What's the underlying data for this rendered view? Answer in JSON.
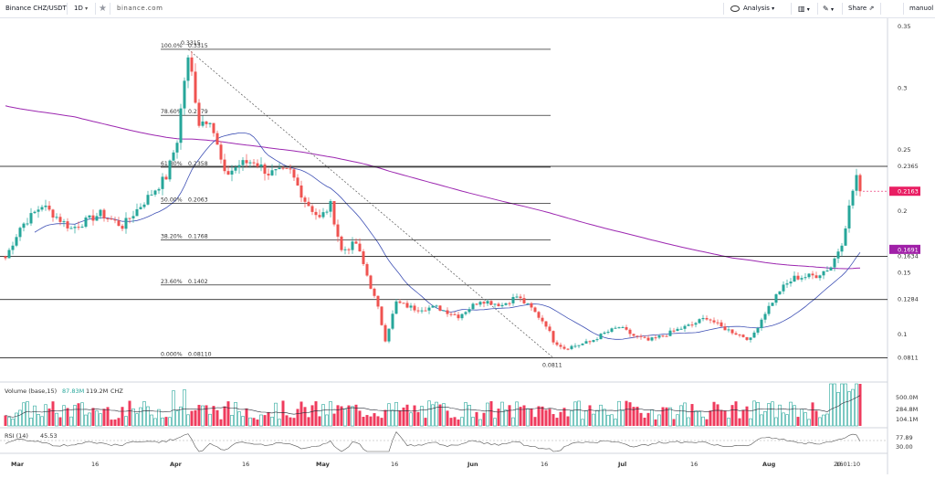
{
  "toolbar": {
    "symbol": "Binance CHZ/USDT",
    "interval": "1D",
    "watermark": "binance.com",
    "analysis": "Analysis",
    "share": "Share",
    "user": "manuol"
  },
  "colors": {
    "up": "#26a69a",
    "down": "#ef5350",
    "ma_long": "#9c27b0",
    "ma_short": "#3f51b5",
    "fib_line": "#000000",
    "price_tag": "#e91e63"
  },
  "icons": [
    "chevron-down-icon",
    "star-icon",
    "eye-icon",
    "bars-icon",
    "pencil-icon",
    "share-icon"
  ],
  "chart_data": {
    "type": "candlestick",
    "symbol": "Binance CHZ/USDT",
    "interval": "1D",
    "x_labels": [
      "Mar",
      "16",
      "Apr",
      "16",
      "May",
      "16",
      "Jun",
      "16",
      "Jul",
      "16",
      "Aug",
      "16"
    ],
    "y_ticks": [
      "0.35",
      "0.3",
      "0.25",
      "0.2",
      "0.15",
      "0.1"
    ],
    "ylim": [
      0.074,
      0.36
    ],
    "price_labels": [
      {
        "text": "0.2365",
        "value": 0.2365
      },
      {
        "text": "0.1634",
        "value": 0.1634
      },
      {
        "text": "0.1284",
        "value": 0.1284
      },
      {
        "text": "0.0811",
        "value": 0.0811
      }
    ],
    "last_price": {
      "text": "0.2163",
      "value": 0.2163
    },
    "ma_price": {
      "text": "0.1691",
      "value": 0.1691
    },
    "horizontal_levels": [
      0.2365,
      0.1634,
      0.1284,
      0.0811
    ],
    "fibonacci": {
      "high": 0.3315,
      "low": 0.0811,
      "levels": [
        {
          "label": "100.0%",
          "value_text": "0.3315",
          "value": 0.3315
        },
        {
          "label": "78.60%",
          "value_text": "0.2779",
          "value": 0.2779
        },
        {
          "label": "61.80%",
          "value_text": "0.2358",
          "value": 0.2358
        },
        {
          "label": "50.00%",
          "value_text": "0.2063",
          "value": 0.2063
        },
        {
          "label": "38.20%",
          "value_text": "0.1768",
          "value": 0.1768
        },
        {
          "label": "23.60%",
          "value_text": "0.1402",
          "value": 0.1402
        },
        {
          "label": "0.000%",
          "value_text": "0.08110",
          "value": 0.0811
        }
      ]
    },
    "annotations": [
      {
        "text": "0.3315",
        "value": 0.3315
      },
      {
        "text": "0.0811",
        "value": 0.0811
      }
    ],
    "series": [
      {
        "name": "price",
        "anchors": [
          [
            0,
            0.162
          ],
          [
            4,
            0.187
          ],
          [
            10,
            0.205
          ],
          [
            18,
            0.186
          ],
          [
            26,
            0.198
          ],
          [
            32,
            0.188
          ],
          [
            38,
            0.208
          ],
          [
            44,
            0.228
          ],
          [
            47,
            0.258
          ],
          [
            50,
            0.3315
          ],
          [
            53,
            0.272
          ],
          [
            56,
            0.276
          ],
          [
            60,
            0.229
          ],
          [
            64,
            0.238
          ],
          [
            68,
            0.241
          ],
          [
            72,
            0.231
          ],
          [
            78,
            0.232
          ],
          [
            82,
            0.209
          ],
          [
            86,
            0.194
          ],
          [
            89,
            0.205
          ],
          [
            92,
            0.168
          ],
          [
            96,
            0.174
          ],
          [
            99,
            0.148
          ],
          [
            102,
            0.121
          ],
          [
            104,
            0.096
          ],
          [
            107,
            0.126
          ],
          [
            112,
            0.121
          ],
          [
            118,
            0.122
          ],
          [
            124,
            0.115
          ],
          [
            130,
            0.128
          ],
          [
            136,
            0.124
          ],
          [
            140,
            0.131
          ],
          [
            144,
            0.121
          ],
          [
            148,
            0.108
          ],
          [
            150,
            0.095
          ],
          [
            153,
            0.089
          ],
          [
            156,
            0.091
          ],
          [
            160,
            0.094
          ],
          [
            164,
            0.101
          ],
          [
            168,
            0.106
          ],
          [
            172,
            0.099
          ],
          [
            176,
            0.095
          ],
          [
            180,
            0.099
          ],
          [
            184,
            0.104
          ],
          [
            188,
            0.108
          ],
          [
            192,
            0.114
          ],
          [
            196,
            0.106
          ],
          [
            200,
            0.101
          ],
          [
            204,
            0.096
          ],
          [
            208,
            0.118
          ],
          [
            212,
            0.136
          ],
          [
            216,
            0.146
          ],
          [
            222,
            0.148
          ],
          [
            226,
            0.155
          ],
          [
            229,
            0.175
          ],
          [
            231,
            0.203
          ],
          [
            232,
            0.217
          ],
          [
            233,
            0.229
          ],
          [
            234,
            0.2163
          ]
        ]
      }
    ],
    "volume": {
      "label": "Volume (base,15)",
      "value1": "87.83M",
      "value2": "119.2M",
      "unit": "CHZ",
      "ticks": [
        "500.0M",
        "284.8M",
        "104.1M"
      ]
    },
    "rsi": {
      "label": "RSI (14)",
      "value": "45.53",
      "ticks": [
        "77.89",
        "30.00"
      ]
    },
    "time_label": "20:01:10",
    "grid": false
  }
}
